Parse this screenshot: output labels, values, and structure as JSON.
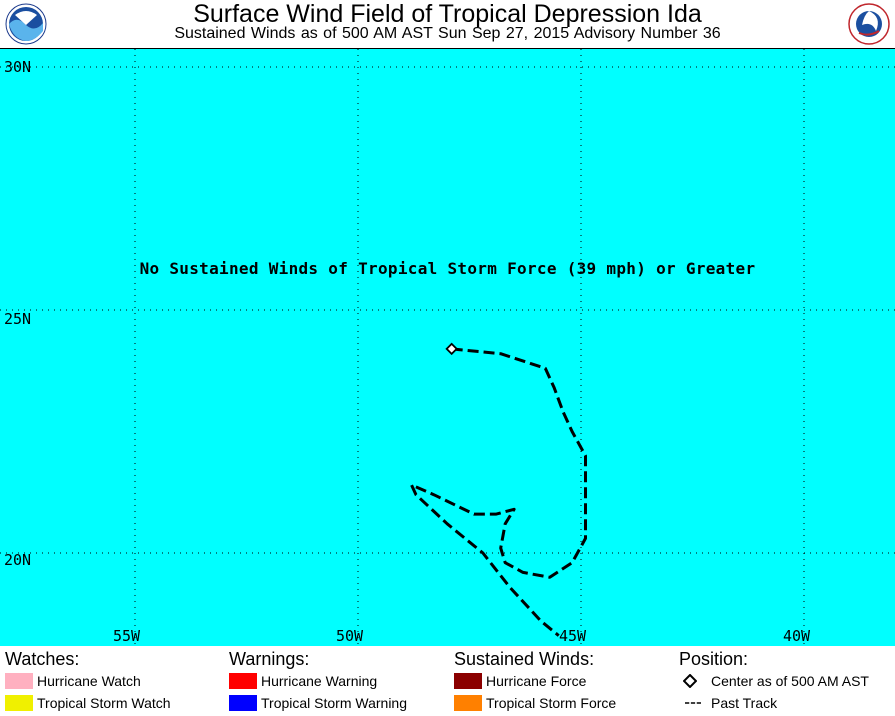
{
  "header": {
    "title": "Surface Wind Field of Tropical Depression Ida",
    "subtitle": "Sustained Winds as of 500 AM AST Sun Sep 27, 2015    Advisory Number 36"
  },
  "map": {
    "background_color": "#00ffff",
    "notice": "No Sustained Winds of Tropical Storm Force (39 mph) or Greater",
    "lat_labels": [
      "30N",
      "25N",
      "20N"
    ],
    "lon_labels": [
      "55W",
      "50W",
      "45W",
      "40W"
    ],
    "grid_lat": [
      30,
      25,
      20
    ],
    "grid_lon": [
      -55,
      -50,
      -45,
      -40
    ],
    "center": {
      "lat": 24.2,
      "lon": -47.9
    },
    "past_track": [
      [
        -47.9,
        24.2
      ],
      [
        -46.8,
        24.1
      ],
      [
        -45.8,
        23.8
      ],
      [
        -45.6,
        23.4
      ],
      [
        -45.4,
        22.9
      ],
      [
        -45.2,
        22.5
      ],
      [
        -44.9,
        22.0
      ],
      [
        -44.9,
        21.5
      ],
      [
        -44.9,
        20.9
      ],
      [
        -44.9,
        20.3
      ],
      [
        -45.2,
        19.8
      ],
      [
        -45.7,
        19.5
      ],
      [
        -46.3,
        19.6
      ],
      [
        -46.7,
        19.8
      ],
      [
        -46.8,
        20.1
      ],
      [
        -46.7,
        20.6
      ],
      [
        -46.5,
        20.9
      ],
      [
        -46.9,
        20.8
      ],
      [
        -47.4,
        20.8
      ],
      [
        -48.3,
        21.2
      ],
      [
        -48.8,
        21.4
      ],
      [
        -48.7,
        21.2
      ],
      [
        -48.0,
        20.6
      ],
      [
        -47.2,
        20.0
      ],
      [
        -46.6,
        19.3
      ],
      [
        -45.9,
        18.6
      ],
      [
        -45.5,
        18.3
      ]
    ]
  },
  "legend": {
    "watches": {
      "heading": "Watches:",
      "items": [
        {
          "label": "Hurricane Watch",
          "color": "#ffb0c0"
        },
        {
          "label": "Tropical Storm Watch",
          "color": "#f0f000"
        }
      ]
    },
    "warnings": {
      "heading": "Warnings:",
      "items": [
        {
          "label": "Hurricane Warning",
          "color": "#ff0000"
        },
        {
          "label": "Tropical Storm Warning",
          "color": "#0000ff"
        }
      ]
    },
    "winds": {
      "heading": "Sustained Winds:",
      "items": [
        {
          "label": "Hurricane Force",
          "color": "#8b0000"
        },
        {
          "label": "Tropical Storm Force",
          "color": "#ff8000"
        }
      ]
    },
    "position": {
      "heading": "Position:",
      "items": [
        {
          "label": "Center as of 500 AM AST",
          "icon": "diamond-icon"
        },
        {
          "label": "Past Track",
          "icon": "dashed-line-icon"
        }
      ]
    }
  }
}
